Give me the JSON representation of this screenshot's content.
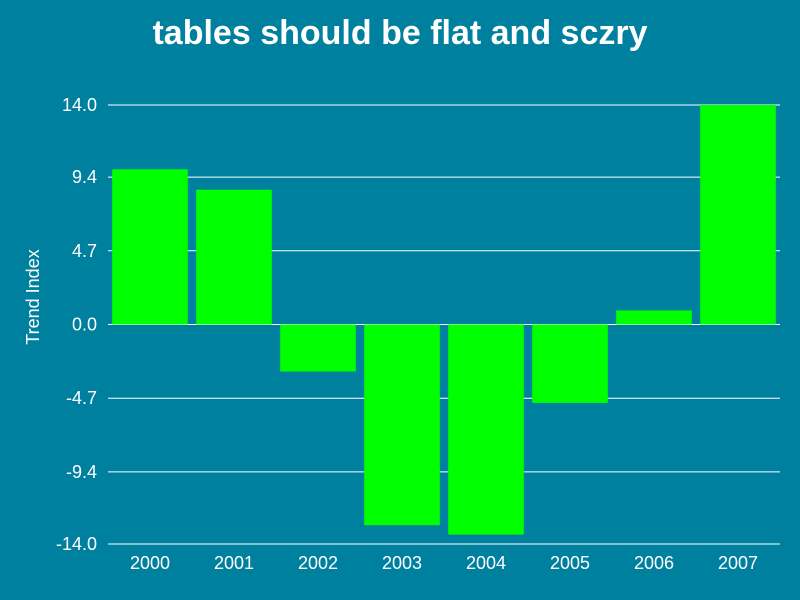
{
  "chart_data": {
    "type": "bar",
    "title": "tables should be flat and sczry",
    "xlabel": "",
    "ylabel": "Trend Index",
    "categories": [
      "2000",
      "2001",
      "2002",
      "2003",
      "2004",
      "2005",
      "2006",
      "2007"
    ],
    "values": [
      9.9,
      8.6,
      -3.0,
      -12.8,
      -13.4,
      -5.0,
      0.9,
      14.0
    ],
    "ylim": [
      -14.0,
      14.0
    ],
    "yticks": [
      "14.0",
      "9.4",
      "4.7",
      "0.0",
      "-4.7",
      "-9.4",
      "-14.0"
    ],
    "grid": true,
    "colors": {
      "background": "#00809f",
      "bar": "#00ff00",
      "grid": "#ffffff",
      "text": "#ffffff"
    }
  }
}
